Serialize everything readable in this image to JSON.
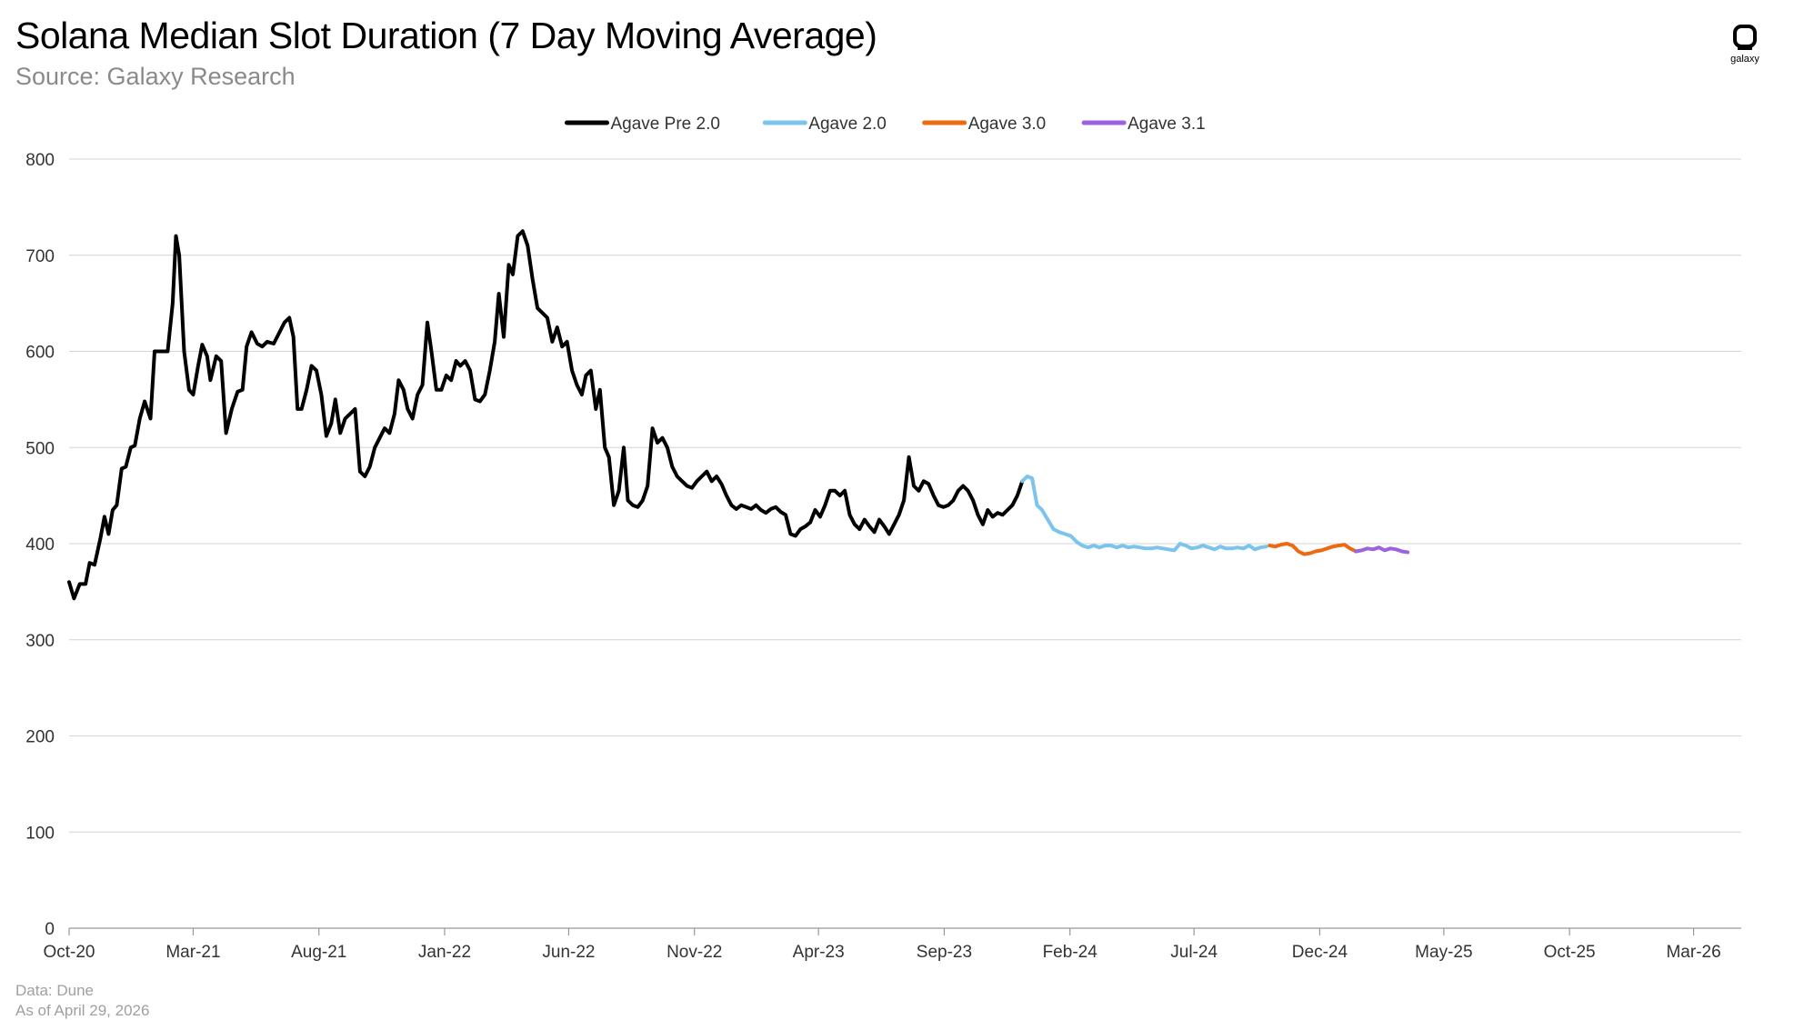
{
  "header": {
    "title": "Solana Median Slot Duration (7 Day Moving Average)",
    "subtitle": "Source: Galaxy Research"
  },
  "logo": {
    "text": "galaxy",
    "icon": "galaxy-logo-icon"
  },
  "footer": {
    "data_source": "Data: Dune",
    "as_of": "As of April 29, 2026"
  },
  "chart_data": {
    "type": "line",
    "title": "Solana Median Slot Duration (7 Day Moving Average)",
    "xlabel": "",
    "ylabel": "",
    "ylim": [
      0,
      800
    ],
    "yticks": [
      0,
      100,
      200,
      300,
      400,
      500,
      600,
      700,
      800
    ],
    "x_axis": {
      "min": "2020-10-01",
      "max": "2026-04-28",
      "tick_labels": [
        "Oct-20",
        "Mar-21",
        "Aug-21",
        "Jan-22",
        "Jun-22",
        "Nov-22",
        "Apr-23",
        "Sep-23",
        "Feb-24",
        "Jul-24",
        "Dec-24",
        "May-25",
        "Oct-25",
        "Mar-26"
      ],
      "tick_dates": [
        "2020-10-01",
        "2021-03-01",
        "2021-08-01",
        "2022-01-01",
        "2022-06-01",
        "2022-11-01",
        "2023-04-01",
        "2023-09-01",
        "2024-02-01",
        "2024-07-01",
        "2024-12-01",
        "2025-05-01",
        "2025-10-01",
        "2026-03-01"
      ]
    },
    "grid": true,
    "legend": "top-center",
    "series": [
      {
        "name": "Agave Pre 2.0",
        "color": "#000000",
        "points": [
          [
            "2020-10-01",
            360
          ],
          [
            "2020-10-07",
            343
          ],
          [
            "2020-10-14",
            358
          ],
          [
            "2020-10-21",
            358
          ],
          [
            "2020-10-26",
            380
          ],
          [
            "2020-11-01",
            378
          ],
          [
            "2020-11-08",
            405
          ],
          [
            "2020-11-13",
            428
          ],
          [
            "2020-11-18",
            410
          ],
          [
            "2020-11-23",
            435
          ],
          [
            "2020-11-28",
            440
          ],
          [
            "2020-12-04",
            478
          ],
          [
            "2020-12-09",
            480
          ],
          [
            "2020-12-15",
            500
          ],
          [
            "2020-12-20",
            502
          ],
          [
            "2020-12-26",
            530
          ],
          [
            "2021-01-01",
            548
          ],
          [
            "2021-01-08",
            530
          ],
          [
            "2021-01-13",
            600
          ],
          [
            "2021-01-20",
            600
          ],
          [
            "2021-01-29",
            600
          ],
          [
            "2021-02-04",
            650
          ],
          [
            "2021-02-08",
            720
          ],
          [
            "2021-02-12",
            700
          ],
          [
            "2021-02-18",
            600
          ],
          [
            "2021-02-24",
            560
          ],
          [
            "2021-03-01",
            555
          ],
          [
            "2021-03-07",
            585
          ],
          [
            "2021-03-12",
            607
          ],
          [
            "2021-03-18",
            595
          ],
          [
            "2021-03-22",
            570
          ],
          [
            "2021-03-29",
            595
          ],
          [
            "2021-04-04",
            590
          ],
          [
            "2021-04-10",
            515
          ],
          [
            "2021-04-17",
            540
          ],
          [
            "2021-04-24",
            558
          ],
          [
            "2021-04-30",
            560
          ],
          [
            "2021-05-05",
            605
          ],
          [
            "2021-05-11",
            620
          ],
          [
            "2021-05-18",
            608
          ],
          [
            "2021-05-24",
            605
          ],
          [
            "2021-05-30",
            610
          ],
          [
            "2021-06-07",
            608
          ],
          [
            "2021-06-13",
            618
          ],
          [
            "2021-06-20",
            630
          ],
          [
            "2021-06-26",
            635
          ],
          [
            "2021-07-01",
            615
          ],
          [
            "2021-07-06",
            540
          ],
          [
            "2021-07-11",
            540
          ],
          [
            "2021-07-17",
            560
          ],
          [
            "2021-07-23",
            585
          ],
          [
            "2021-07-29",
            580
          ],
          [
            "2021-08-04",
            555
          ],
          [
            "2021-08-10",
            512
          ],
          [
            "2021-08-16",
            525
          ],
          [
            "2021-08-21",
            550
          ],
          [
            "2021-08-27",
            515
          ],
          [
            "2021-09-02",
            530
          ],
          [
            "2021-09-08",
            535
          ],
          [
            "2021-09-14",
            540
          ],
          [
            "2021-09-20",
            475
          ],
          [
            "2021-09-26",
            470
          ],
          [
            "2021-10-02",
            480
          ],
          [
            "2021-10-08",
            500
          ],
          [
            "2021-10-14",
            510
          ],
          [
            "2021-10-20",
            520
          ],
          [
            "2021-10-26",
            515
          ],
          [
            "2021-11-01",
            535
          ],
          [
            "2021-11-06",
            570
          ],
          [
            "2021-11-12",
            560
          ],
          [
            "2021-11-17",
            540
          ],
          [
            "2021-11-23",
            530
          ],
          [
            "2021-11-29",
            555
          ],
          [
            "2021-12-05",
            565
          ],
          [
            "2021-12-11",
            630
          ],
          [
            "2021-12-16",
            600
          ],
          [
            "2021-12-22",
            560
          ],
          [
            "2021-12-28",
            560
          ],
          [
            "2022-01-03",
            575
          ],
          [
            "2022-01-09",
            570
          ],
          [
            "2022-01-15",
            590
          ],
          [
            "2022-01-20",
            585
          ],
          [
            "2022-01-26",
            590
          ],
          [
            "2022-02-01",
            580
          ],
          [
            "2022-02-07",
            550
          ],
          [
            "2022-02-13",
            548
          ],
          [
            "2022-02-19",
            555
          ],
          [
            "2022-02-25",
            580
          ],
          [
            "2022-03-03",
            610
          ],
          [
            "2022-03-08",
            660
          ],
          [
            "2022-03-14",
            615
          ],
          [
            "2022-03-20",
            690
          ],
          [
            "2022-03-25",
            680
          ],
          [
            "2022-03-31",
            720
          ],
          [
            "2022-04-06",
            725
          ],
          [
            "2022-04-12",
            710
          ],
          [
            "2022-04-18",
            675
          ],
          [
            "2022-04-24",
            645
          ],
          [
            "2022-04-30",
            640
          ],
          [
            "2022-05-06",
            635
          ],
          [
            "2022-05-12",
            610
          ],
          [
            "2022-05-18",
            625
          ],
          [
            "2022-05-24",
            605
          ],
          [
            "2022-05-30",
            610
          ],
          [
            "2022-06-05",
            580
          ],
          [
            "2022-06-11",
            565
          ],
          [
            "2022-06-17",
            555
          ],
          [
            "2022-06-22",
            575
          ],
          [
            "2022-06-28",
            580
          ],
          [
            "2022-07-04",
            540
          ],
          [
            "2022-07-09",
            560
          ],
          [
            "2022-07-15",
            500
          ],
          [
            "2022-07-20",
            490
          ],
          [
            "2022-07-26",
            440
          ],
          [
            "2022-08-01",
            455
          ],
          [
            "2022-08-07",
            500
          ],
          [
            "2022-08-12",
            445
          ],
          [
            "2022-08-18",
            440
          ],
          [
            "2022-08-24",
            438
          ],
          [
            "2022-08-30",
            445
          ],
          [
            "2022-09-05",
            460
          ],
          [
            "2022-09-11",
            520
          ],
          [
            "2022-09-17",
            505
          ],
          [
            "2022-09-23",
            510
          ],
          [
            "2022-09-29",
            500
          ],
          [
            "2022-10-05",
            480
          ],
          [
            "2022-10-11",
            470
          ],
          [
            "2022-10-17",
            465
          ],
          [
            "2022-10-23",
            460
          ],
          [
            "2022-10-29",
            458
          ],
          [
            "2022-11-04",
            465
          ],
          [
            "2022-11-10",
            470
          ],
          [
            "2022-11-16",
            475
          ],
          [
            "2022-11-22",
            465
          ],
          [
            "2022-11-28",
            470
          ],
          [
            "2022-12-04",
            462
          ],
          [
            "2022-12-10",
            450
          ],
          [
            "2022-12-16",
            440
          ],
          [
            "2022-12-22",
            436
          ],
          [
            "2022-12-28",
            440
          ],
          [
            "2023-01-03",
            438
          ],
          [
            "2023-01-09",
            436
          ],
          [
            "2023-01-15",
            440
          ],
          [
            "2023-01-21",
            435
          ],
          [
            "2023-01-27",
            432
          ],
          [
            "2023-02-02",
            436
          ],
          [
            "2023-02-08",
            438
          ],
          [
            "2023-02-14",
            433
          ],
          [
            "2023-02-20",
            430
          ],
          [
            "2023-02-26",
            410
          ],
          [
            "2023-03-04",
            408
          ],
          [
            "2023-03-10",
            415
          ],
          [
            "2023-03-16",
            418
          ],
          [
            "2023-03-22",
            422
          ],
          [
            "2023-03-28",
            435
          ],
          [
            "2023-04-03",
            428
          ],
          [
            "2023-04-09",
            440
          ],
          [
            "2023-04-15",
            455
          ],
          [
            "2023-04-21",
            455
          ],
          [
            "2023-04-27",
            450
          ],
          [
            "2023-05-03",
            455
          ],
          [
            "2023-05-09",
            430
          ],
          [
            "2023-05-15",
            420
          ],
          [
            "2023-05-21",
            415
          ],
          [
            "2023-05-27",
            425
          ],
          [
            "2023-06-02",
            418
          ],
          [
            "2023-06-08",
            412
          ],
          [
            "2023-06-14",
            425
          ],
          [
            "2023-06-20",
            418
          ],
          [
            "2023-06-26",
            410
          ],
          [
            "2023-07-02",
            420
          ],
          [
            "2023-07-08",
            430
          ],
          [
            "2023-07-14",
            445
          ],
          [
            "2023-07-20",
            490
          ],
          [
            "2023-07-26",
            460
          ],
          [
            "2023-08-01",
            455
          ],
          [
            "2023-08-07",
            465
          ],
          [
            "2023-08-13",
            462
          ],
          [
            "2023-08-19",
            450
          ],
          [
            "2023-08-25",
            440
          ],
          [
            "2023-08-31",
            438
          ],
          [
            "2023-09-06",
            440
          ],
          [
            "2023-09-12",
            445
          ],
          [
            "2023-09-18",
            455
          ],
          [
            "2023-09-24",
            460
          ],
          [
            "2023-09-30",
            455
          ],
          [
            "2023-10-06",
            445
          ],
          [
            "2023-10-12",
            430
          ],
          [
            "2023-10-18",
            420
          ],
          [
            "2023-10-24",
            435
          ],
          [
            "2023-10-30",
            428
          ],
          [
            "2023-11-05",
            432
          ],
          [
            "2023-11-11",
            430
          ],
          [
            "2023-11-17",
            435
          ],
          [
            "2023-11-23",
            440
          ],
          [
            "2023-11-29",
            450
          ],
          [
            "2023-12-05",
            465
          ]
        ]
      },
      {
        "name": "Agave 2.0",
        "color": "#7cc4ee",
        "points": [
          [
            "2023-12-05",
            465
          ],
          [
            "2023-12-11",
            470
          ],
          [
            "2023-12-17",
            468
          ],
          [
            "2023-12-23",
            440
          ],
          [
            "2023-12-29",
            435
          ],
          [
            "2024-01-05",
            425
          ],
          [
            "2024-01-12",
            415
          ],
          [
            "2024-01-19",
            412
          ],
          [
            "2024-01-26",
            410
          ],
          [
            "2024-02-02",
            408
          ],
          [
            "2024-02-09",
            402
          ],
          [
            "2024-02-16",
            398
          ],
          [
            "2024-02-23",
            396
          ],
          [
            "2024-03-01",
            398
          ],
          [
            "2024-03-08",
            396
          ],
          [
            "2024-03-15",
            398
          ],
          [
            "2024-03-22",
            398
          ],
          [
            "2024-03-29",
            396
          ],
          [
            "2024-04-05",
            398
          ],
          [
            "2024-04-12",
            396
          ],
          [
            "2024-04-19",
            397
          ],
          [
            "2024-04-26",
            396
          ],
          [
            "2024-05-03",
            395
          ],
          [
            "2024-05-10",
            395
          ],
          [
            "2024-05-17",
            396
          ],
          [
            "2024-05-24",
            395
          ],
          [
            "2024-05-31",
            394
          ],
          [
            "2024-06-07",
            393
          ],
          [
            "2024-06-14",
            400
          ],
          [
            "2024-06-21",
            398
          ],
          [
            "2024-06-28",
            395
          ],
          [
            "2024-07-05",
            396
          ],
          [
            "2024-07-12",
            398
          ],
          [
            "2024-07-19",
            396
          ],
          [
            "2024-07-26",
            394
          ],
          [
            "2024-08-02",
            397
          ],
          [
            "2024-08-09",
            395
          ],
          [
            "2024-08-16",
            395
          ],
          [
            "2024-08-23",
            396
          ],
          [
            "2024-08-30",
            395
          ],
          [
            "2024-09-06",
            398
          ],
          [
            "2024-09-13",
            394
          ],
          [
            "2024-09-20",
            396
          ],
          [
            "2024-09-27",
            397
          ]
        ]
      },
      {
        "name": "Agave 3.0",
        "color": "#ec6a12",
        "points": [
          [
            "2024-10-01",
            398
          ],
          [
            "2024-10-08",
            397
          ],
          [
            "2024-10-15",
            399
          ],
          [
            "2024-10-22",
            400
          ],
          [
            "2024-10-29",
            398
          ],
          [
            "2024-11-05",
            392
          ],
          [
            "2024-11-12",
            389
          ],
          [
            "2024-11-19",
            390
          ],
          [
            "2024-11-26",
            392
          ],
          [
            "2024-12-03",
            393
          ],
          [
            "2024-12-10",
            395
          ],
          [
            "2024-12-17",
            397
          ],
          [
            "2024-12-24",
            398
          ],
          [
            "2024-12-31",
            399
          ],
          [
            "2025-01-07",
            395
          ],
          [
            "2025-01-14",
            392
          ]
        ]
      },
      {
        "name": "Agave 3.1",
        "color": "#9b63e0",
        "points": [
          [
            "2025-01-14",
            392
          ],
          [
            "2025-01-21",
            393
          ],
          [
            "2025-01-28",
            395
          ],
          [
            "2025-02-04",
            394
          ],
          [
            "2025-02-11",
            396
          ],
          [
            "2025-02-18",
            393
          ],
          [
            "2025-02-25",
            395
          ],
          [
            "2025-03-04",
            394
          ],
          [
            "2025-03-11",
            392
          ],
          [
            "2025-03-18",
            391
          ]
        ]
      }
    ]
  }
}
